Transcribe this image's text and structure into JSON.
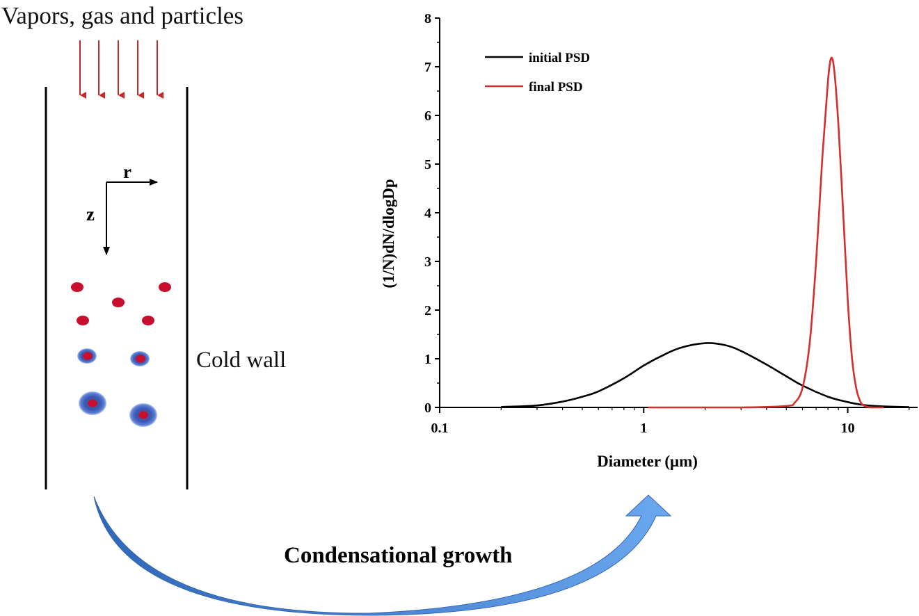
{
  "schematic": {
    "inlet_label": "Vapors, gas and particles",
    "wall_label": "Cold wall",
    "axis_r": "r",
    "axis_z": "z"
  },
  "process": {
    "label": "Condensational growth"
  },
  "colors": {
    "inlet_arrow": "#c62828",
    "particle_core": "#c8102e",
    "particle_shell": "#3b57b0",
    "initial_psd": "#000000",
    "final_psd": "#d32f2f",
    "growth_arrow": "#4a84d4"
  },
  "chart_data": {
    "type": "line",
    "xscale": "log",
    "xlabel": "Diameter (μm)",
    "ylabel": "(1/N)dN/dlogDp",
    "xlim": [
      0.1,
      22
    ],
    "ylim": [
      0,
      8
    ],
    "x_ticks": [
      0.1,
      1,
      10
    ],
    "x_tick_labels": [
      "0.1",
      "1",
      "10"
    ],
    "y_ticks": [
      0,
      1,
      2,
      3,
      4,
      5,
      6,
      7,
      8
    ],
    "y_tick_labels": [
      "0",
      "1",
      "2",
      "3",
      "4",
      "5",
      "6",
      "7",
      "8"
    ],
    "grid": false,
    "legend_position": "top-left",
    "series": [
      {
        "name": "initial PSD",
        "x": [
          0.2,
          0.3,
          0.4,
          0.5,
          0.6,
          0.8,
          1.0,
          1.2,
          1.5,
          2.0,
          2.5,
          3.0,
          4.0,
          5.0,
          6.0,
          8.0,
          10,
          12,
          15,
          20
        ],
        "y": [
          0.01,
          0.04,
          0.12,
          0.22,
          0.33,
          0.6,
          0.86,
          1.04,
          1.22,
          1.32,
          1.28,
          1.16,
          0.88,
          0.64,
          0.45,
          0.22,
          0.11,
          0.05,
          0.02,
          0.005
        ]
      },
      {
        "name": "final PSD",
        "x": [
          1.05,
          3,
          5,
          5.5,
          6.0,
          6.5,
          7.0,
          7.5,
          8.0,
          8.3,
          8.6,
          9.0,
          9.5,
          10.0,
          10.5,
          11.0,
          11.5,
          12.0,
          13.0,
          15.0
        ],
        "y": [
          0,
          0,
          0.03,
          0.1,
          0.4,
          1.3,
          3.0,
          5.1,
          6.7,
          7.18,
          6.9,
          5.8,
          4.0,
          2.2,
          1.0,
          0.4,
          0.13,
          0.04,
          0,
          0
        ]
      }
    ]
  }
}
